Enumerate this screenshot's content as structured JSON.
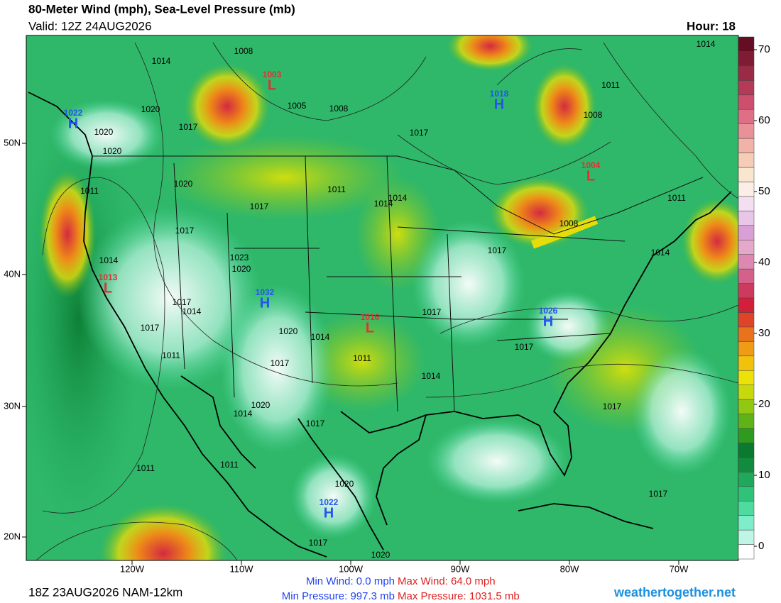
{
  "header": {
    "title": "80-Meter Wind (mph), Sea-Level Pressure (mb)",
    "valid": "Valid: 12Z 24AUG2026",
    "hour": "Hour: 18"
  },
  "colorbar": {
    "range": [
      0,
      70
    ],
    "ticks": [
      0,
      10,
      20,
      30,
      40,
      50,
      60,
      70
    ],
    "colors": [
      "#ffffff",
      "#bff5e4",
      "#7eedc9",
      "#4fdba0",
      "#2fc37a",
      "#1fa95a",
      "#118c3e",
      "#0a7a30",
      "#2e9a1e",
      "#5fb318",
      "#93c812",
      "#c6d90c",
      "#ece20a",
      "#f1c10c",
      "#ee9c15",
      "#e8731c",
      "#e04426",
      "#d41f3a",
      "#cc3a5e",
      "#d4618a",
      "#dc88b0",
      "#e3a8cc",
      "#d9a0d8",
      "#e8c6e8",
      "#f4dff2",
      "#fbeee6",
      "#f9e6cf",
      "#f5ccb5",
      "#f1b2a7",
      "#e99199",
      "#df6f86",
      "#cc4f6e",
      "#b43a58",
      "#9a2a45",
      "#7f1b33",
      "#650d22"
    ]
  },
  "axes": {
    "lat_labels": [
      "20N",
      "30N",
      "40N",
      "50N"
    ],
    "lon_labels": [
      "120W",
      "110W",
      "100W",
      "90W",
      "80W",
      "70W"
    ]
  },
  "centers": [
    {
      "symbol": "H",
      "value": "1022"
    },
    {
      "symbol": "L",
      "value": "1003"
    },
    {
      "symbol": "H",
      "value": "1018"
    },
    {
      "symbol": "L",
      "value": "1004"
    },
    {
      "symbol": "L",
      "value": "1013"
    },
    {
      "symbol": "H",
      "value": "1032"
    },
    {
      "symbol": "L",
      "value": "1016"
    },
    {
      "symbol": "H",
      "value": "1026"
    },
    {
      "symbol": "H",
      "value": "1022"
    }
  ],
  "isobar_labels": [
    "1014",
    "1008",
    "1005",
    "1008",
    "1020",
    "1017",
    "1020",
    "1020",
    "1011",
    "1008",
    "1014",
    "1017",
    "1020",
    "1011",
    "1014",
    "1017",
    "1017",
    "1011",
    "1008",
    "1017",
    "1014",
    "1014",
    "1023",
    "1020",
    "1017",
    "1017",
    "1014",
    "1017",
    "1020",
    "1014",
    "1011",
    "1017",
    "1011",
    "1014",
    "1017",
    "1020",
    "1014",
    "1017",
    "1017",
    "1011",
    "1011",
    "1020",
    "1017",
    "1017",
    "1020",
    "1011",
    "1014"
  ],
  "footer": {
    "run": "18Z 23AUG2026 NAM-12km",
    "min_wind": "Min Wind:   0.0 mph",
    "max_wind": "Max Wind: 64.0 mph",
    "min_pressure": "Min Pressure: 997.3 mb",
    "max_pressure": "Max Pressure: 1031.5 mb",
    "site": "weathertogether.net"
  }
}
